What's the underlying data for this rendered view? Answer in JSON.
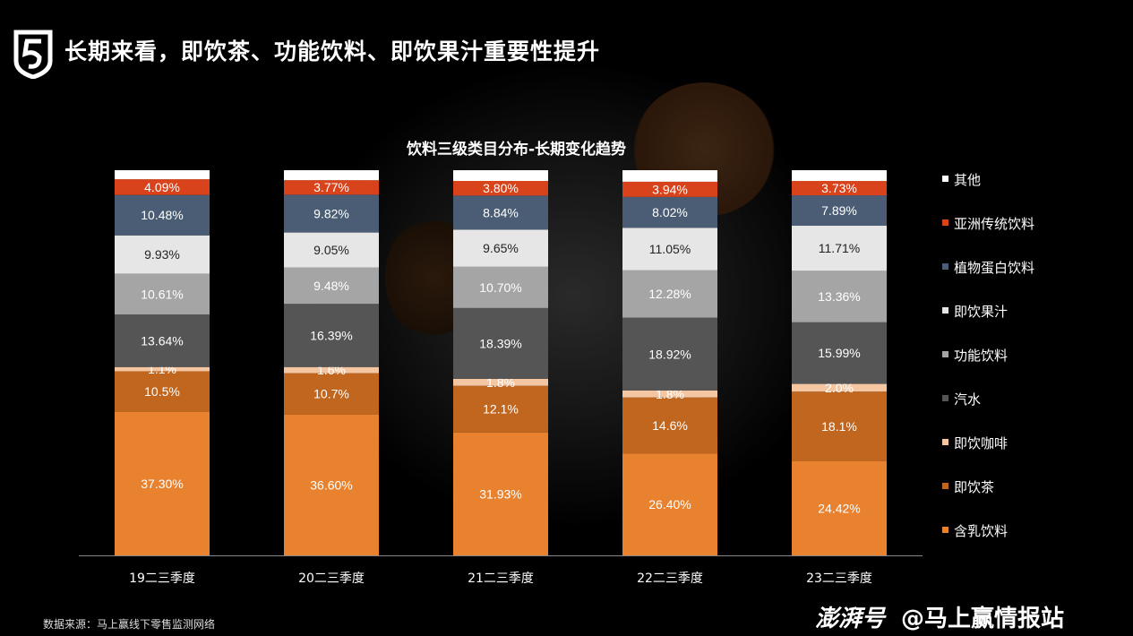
{
  "header": {
    "title": "长期来看，即饮茶、功能饮料、即饮果汁重要性提升"
  },
  "chart_data": {
    "type": "bar",
    "stacked": true,
    "title": "饮料三级类目分布-长期变化趋势",
    "categories": [
      "19二三季度",
      "20二三季度",
      "21二三季度",
      "22二三季度",
      "23二三季度"
    ],
    "ylim": [
      0,
      100
    ],
    "legend_position": "right",
    "series": [
      {
        "name": "含乳饮料",
        "color": "#e8822e",
        "text": "#fff",
        "values": [
          37.3,
          36.6,
          31.93,
          26.4,
          24.42
        ],
        "labels": [
          "37.30%",
          "36.60%",
          "31.93%",
          "26.40%",
          "24.42%"
        ]
      },
      {
        "name": "即饮茶",
        "color": "#c0661f",
        "text": "#fff",
        "values": [
          10.5,
          10.7,
          12.1,
          14.6,
          18.1
        ],
        "labels": [
          "10.5%",
          "10.7%",
          "12.1%",
          "14.6%",
          "18.1%"
        ]
      },
      {
        "name": "即饮咖啡",
        "color": "#f4c6a2",
        "text": "#fff",
        "values": [
          1.1,
          1.6,
          1.8,
          1.8,
          2.0
        ],
        "labels": [
          "1.1%",
          "1.6%",
          "1.8%",
          "1.8%",
          "2.0%"
        ]
      },
      {
        "name": "汽水",
        "color": "#555555",
        "text": "#fff",
        "values": [
          13.64,
          16.39,
          18.39,
          18.92,
          15.99
        ],
        "labels": [
          "13.64%",
          "16.39%",
          "18.39%",
          "18.92%",
          "15.99%"
        ]
      },
      {
        "name": "功能饮料",
        "color": "#a5a5a5",
        "text": "#fff",
        "values": [
          10.61,
          9.48,
          10.7,
          12.28,
          13.36
        ],
        "labels": [
          "10.61%",
          "9.48%",
          "10.70%",
          "12.28%",
          "13.36%"
        ]
      },
      {
        "name": "即饮果汁",
        "color": "#e6e6e6",
        "text": "#222",
        "values": [
          9.93,
          9.05,
          9.65,
          11.05,
          11.71
        ],
        "labels": [
          "9.93%",
          "9.05%",
          "9.65%",
          "11.05%",
          "11.71%"
        ]
      },
      {
        "name": "植物蛋白饮料",
        "color": "#4a5d75",
        "text": "#fff",
        "values": [
          10.48,
          9.82,
          8.84,
          8.02,
          7.89
        ],
        "labels": [
          "10.48%",
          "9.82%",
          "8.84%",
          "8.02%",
          "7.89%"
        ]
      },
      {
        "name": "亚洲传统饮料",
        "color": "#d8431b",
        "text": "#fff",
        "values": [
          4.09,
          3.77,
          3.8,
          3.94,
          3.73
        ],
        "labels": [
          "4.09%",
          "3.77%",
          "3.80%",
          "3.94%",
          "3.73%"
        ]
      },
      {
        "name": "其他",
        "color": "#ffffff",
        "text": "#222",
        "values": [
          2.35,
          2.59,
          2.79,
          2.99,
          2.8
        ],
        "labels": [
          null,
          null,
          null,
          null,
          null
        ]
      }
    ]
  },
  "footer": {
    "source": "数据来源：马上赢线下零售监测网络",
    "watermark_brand": "澎湃号",
    "watermark_author": "@马上赢情报站"
  }
}
